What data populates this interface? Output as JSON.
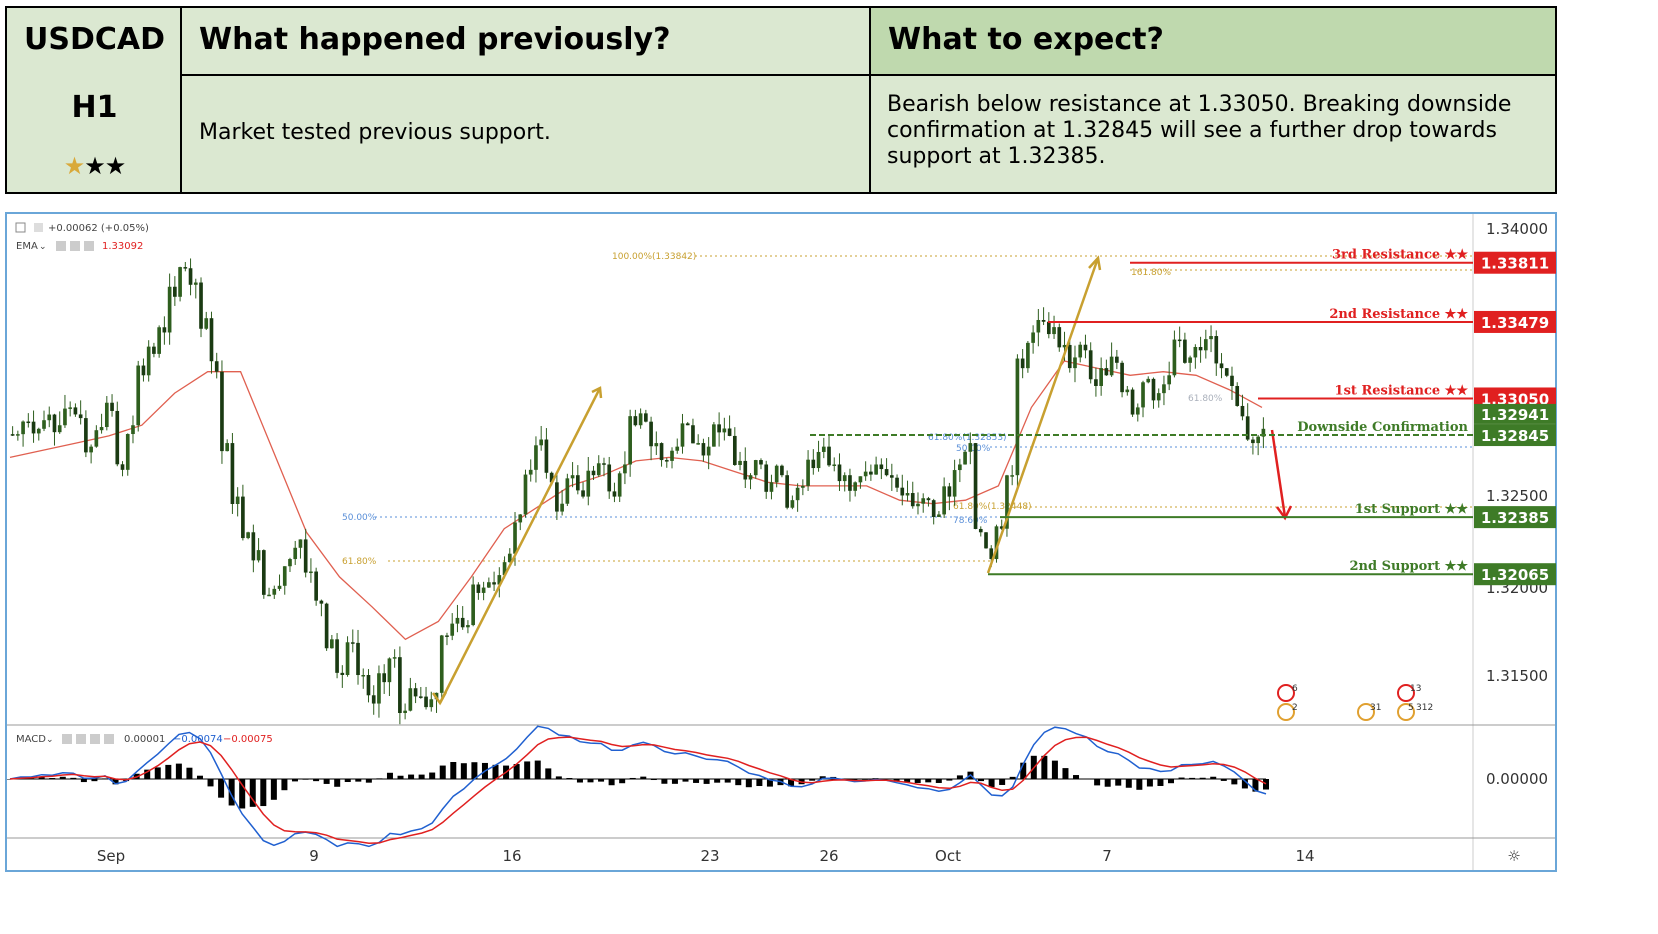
{
  "header": {
    "symbol": "USDCAD",
    "timeframe": "H1",
    "rating_stars": 3,
    "rating_gold": 1,
    "previous_title": "What happened previously?",
    "previous_text": "Market tested previous support.",
    "expect_title": "What to expect?",
    "expect_text": "Bearish below resistance at 1.33050. Breaking downside confirmation at 1.32845 will see a further drop towards support at 1.32385."
  },
  "chart_top": {
    "change": "+0.00062 (+0.05%)",
    "ema_label": "EMA",
    "ema_value": "1.33092",
    "macd_label": "MACD",
    "macd_values": [
      "0.00001",
      "−0.00074",
      "−0.00075"
    ]
  },
  "chart_data": {
    "type": "line",
    "title": "",
    "ylim": [
      1.31,
      1.341
    ],
    "y_ticks": [
      "1.34000",
      "1.32500",
      "1.32000",
      "1.31500"
    ],
    "x_ticks": [
      "Sep",
      "9",
      "16",
      "23",
      "26",
      "Oct",
      "7",
      "14"
    ],
    "macd_tick": "0.00000",
    "series": [
      {
        "values": [
          1.3285,
          1.3292,
          1.3288,
          1.3296,
          1.329,
          1.33,
          1.3294,
          1.3278,
          1.3289,
          1.3298,
          1.3265,
          1.329,
          1.3318,
          1.333,
          1.3342,
          1.3362,
          1.3378,
          1.337,
          1.335,
          1.332,
          1.328,
          1.325,
          1.323,
          1.322,
          1.3195,
          1.32,
          1.3215,
          1.3226,
          1.3208,
          1.319,
          1.317,
          1.315,
          1.3168,
          1.315,
          1.3134,
          1.3146,
          1.316,
          1.313,
          1.3138,
          1.3132,
          1.314,
          1.3172,
          1.3182,
          1.3178,
          1.3196,
          1.3202,
          1.3206,
          1.3218,
          1.324,
          1.3265,
          1.3282,
          1.3258,
          1.3246,
          1.3262,
          1.325,
          1.3262,
          1.3268,
          1.325,
          1.3268,
          1.329,
          1.3292,
          1.328,
          1.327,
          1.3278,
          1.329,
          1.328,
          1.3278,
          1.3286,
          1.3284,
          1.327,
          1.3262,
          1.3268,
          1.3258,
          1.3262,
          1.3248,
          1.3256,
          1.3266,
          1.3278,
          1.3268,
          1.3262,
          1.3258,
          1.3264,
          1.3268,
          1.3262,
          1.3255,
          1.3252,
          1.3246,
          1.3248,
          1.324,
          1.325,
          1.3268,
          1.328,
          1.323,
          1.3215,
          1.3232,
          1.3262,
          1.3322,
          1.3342,
          1.3348,
          1.3345,
          1.3335,
          1.3328,
          1.3332,
          1.3312,
          1.3318,
          1.3325,
          1.331,
          1.33,
          1.3316,
          1.3308,
          1.3318,
          1.3338,
          1.3328,
          1.3332,
          1.334,
          1.3322,
          1.3312,
          1.3295,
          1.328,
          1.3288
        ]
      },
      {
        "name": "EMA",
        "values": [
          1.3272,
          1.3276,
          1.328,
          1.3284,
          1.329,
          1.3308,
          1.332,
          1.332,
          1.3275,
          1.323,
          1.3205,
          1.3188,
          1.317,
          1.318,
          1.3205,
          1.3232,
          1.3244,
          1.3256,
          1.3262,
          1.327,
          1.3272,
          1.327,
          1.3264,
          1.3258,
          1.3256,
          1.3256,
          1.3256,
          1.3248,
          1.3246,
          1.3248,
          1.3256,
          1.33,
          1.3326,
          1.3322,
          1.3318,
          1.332,
          1.3318,
          1.331,
          1.33
        ]
      }
    ],
    "levels": [
      {
        "name": "3rd Resistance",
        "value": 1.33811,
        "label": "1.33811",
        "color": "#e02020"
      },
      {
        "name": "2nd Resistance",
        "value": 1.33479,
        "label": "1.33479",
        "color": "#e02020"
      },
      {
        "name": "1st Resistance",
        "value": 1.3305,
        "label": "1.33050",
        "color": "#e02020"
      },
      {
        "name": "Downside Confirmation",
        "value": 1.32845,
        "label": "1.32845",
        "color": "#3e7b27"
      },
      {
        "name": "1st Support",
        "value": 1.32385,
        "label": "1.32385",
        "color": "#3e7b27"
      },
      {
        "name": "2nd Support",
        "value": 1.32065,
        "label": "1.32065",
        "color": "#3e7b27"
      }
    ],
    "current_price": {
      "value": 1.32941,
      "label": "1.32941"
    },
    "fib_labels": [
      "100.00%(1.33842)",
      "161.80%",
      "50.00%",
      "61.80%",
      "61.80%(1.32853)",
      "50.00%",
      "78.60%",
      "61.80%(1.32448)",
      "61.80%"
    ],
    "event_counts": [
      "6",
      "2",
      "31",
      "13",
      "5",
      "312"
    ]
  },
  "colors": {
    "resistance": "#e02020",
    "support": "#3e7b27",
    "fib": "#c8a030",
    "fib_blue": "#5a8fd8",
    "ema": "#e06050",
    "macd": "#2060d0",
    "signal": "#e02020",
    "candle": "#2e5e1e"
  },
  "icons": [
    "settings-gear-icon",
    "collapse-icon",
    "eye-icon",
    "close-icon",
    "chevron-down-icon",
    "canada-flag-icon",
    "usa-flag-icon"
  ]
}
